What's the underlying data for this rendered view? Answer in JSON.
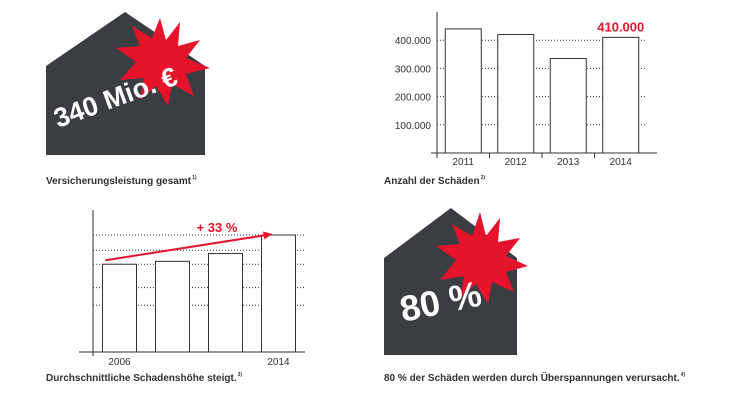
{
  "colors": {
    "house": "#3a3d42",
    "accent": "#e5142b",
    "ink": "#2f3133",
    "bar_fill": "#ffffff"
  },
  "icons": [
    "house-shape",
    "explosion-starburst"
  ],
  "panels": {
    "insurance": {
      "value_text": "340 Mio. €",
      "caption": "Versicherungsleistung gesamt",
      "footnote": "1)"
    },
    "surge": {
      "value_text": "80 %",
      "caption": "80 % der Schäden werden durch Überspannungen verursacht.",
      "footnote": "4)"
    }
  },
  "chart_data": [
    {
      "type": "bar",
      "categories": [
        "2011",
        "2012",
        "2013",
        "2014"
      ],
      "values": [
        440000,
        420000,
        335000,
        410000
      ],
      "y_ticks": [
        "100.000",
        "200.000",
        "300.000",
        "400.000"
      ],
      "ylim": [
        0,
        500000
      ],
      "grid": "dotted horizontal",
      "highlight_label": "410.000",
      "caption": "Anzahl der Schäden",
      "footnote": "2)"
    },
    {
      "type": "bar",
      "categories": [
        "2006",
        "",
        "",
        "2014"
      ],
      "values": [
        90,
        93,
        101,
        120
      ],
      "ylim": [
        0,
        120
      ],
      "grid": "dotted horizontal",
      "trend_label": "+ 33 %",
      "caption": "Durchschnittliche Schadenshöhe steigt.",
      "footnote": "3)"
    }
  ]
}
